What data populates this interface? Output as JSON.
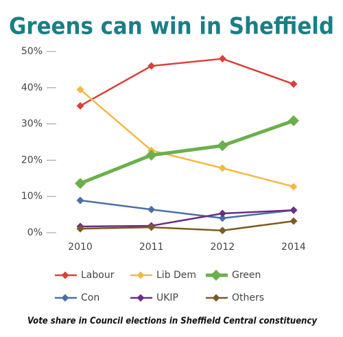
{
  "chart_data": {
    "type": "line",
    "title": "Greens can win in Sheffield",
    "subtitle": "Vote share in Council elections in Sheffield Central constituency",
    "categories": [
      "2010",
      "2011",
      "2012",
      "2014"
    ],
    "ylim": [
      0,
      50
    ],
    "yticks": [
      {
        "value": 0,
        "label": "0%"
      },
      {
        "value": 10,
        "label": "10%"
      },
      {
        "value": 20,
        "label": "20%"
      },
      {
        "value": 30,
        "label": "30%"
      },
      {
        "value": 40,
        "label": "40%"
      },
      {
        "value": 50,
        "label": "50%"
      }
    ],
    "legend": "bottom",
    "series": [
      {
        "name": "Labour",
        "color": "#d9403a",
        "line_width": 2.5,
        "values": [
          35,
          46,
          48,
          41
        ]
      },
      {
        "name": "Lib Dem",
        "color": "#f3b942",
        "line_width": 2.5,
        "values": [
          39.5,
          22.7,
          17.8,
          12.7
        ]
      },
      {
        "name": "Green",
        "color": "#6ab04c",
        "line_width": 5,
        "values": [
          13.6,
          21.4,
          24,
          30.9
        ]
      },
      {
        "name": "Con",
        "color": "#4a6fa5",
        "line_width": 2.5,
        "values": [
          8.9,
          6.4,
          4,
          6.2
        ]
      },
      {
        "name": "UKIP",
        "color": "#6b2d86",
        "line_width": 2.5,
        "values": [
          1.7,
          1.9,
          5.3,
          6.2
        ]
      },
      {
        "name": "Others",
        "color": "#7a5c22",
        "line_width": 2.5,
        "values": [
          1.1,
          1.5,
          0.6,
          3.2
        ]
      }
    ]
  }
}
